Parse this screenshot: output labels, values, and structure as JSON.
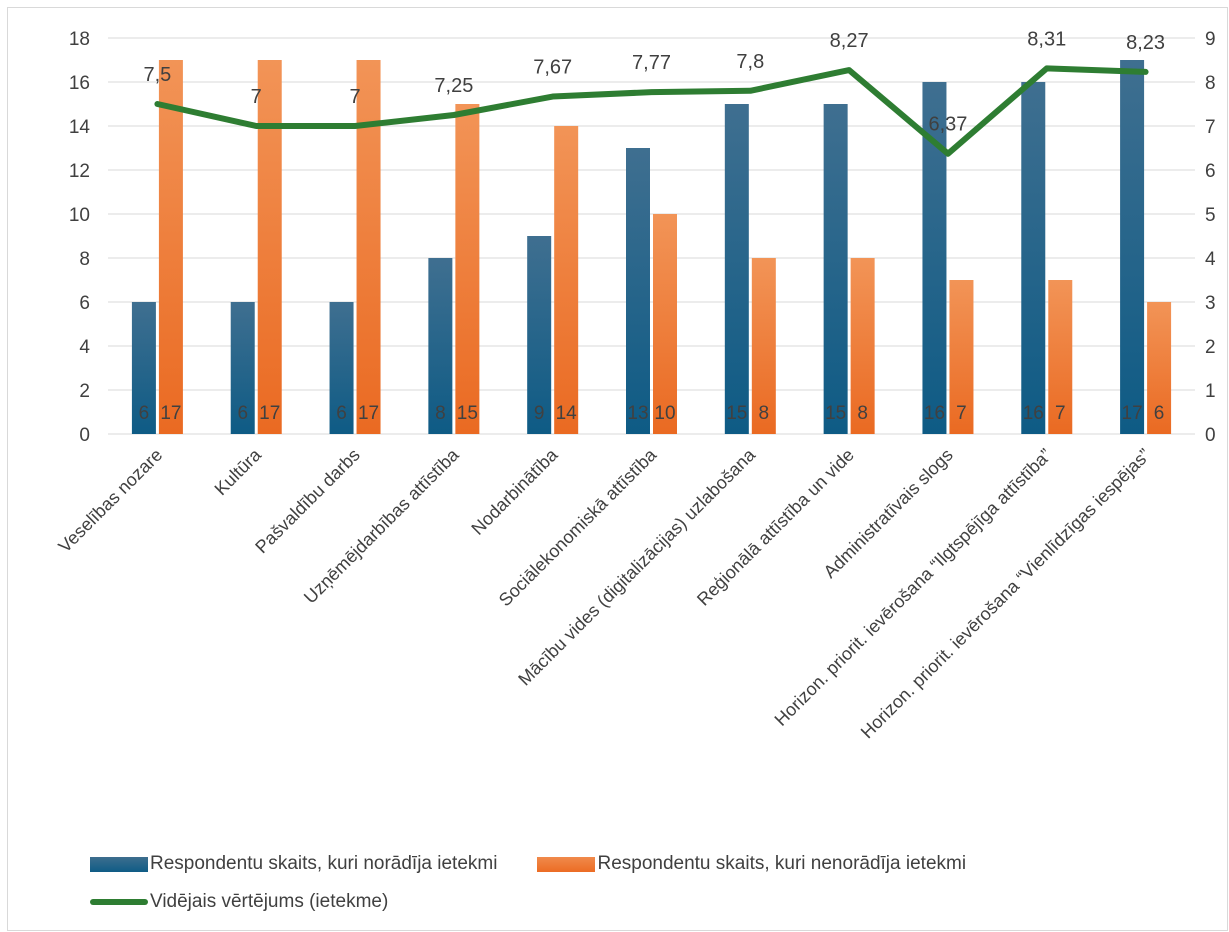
{
  "chart_data": {
    "type": "bar",
    "categories": [
      "Veselības nozare",
      "Kultūra",
      "Pašvaldību darbs",
      "Uzņēmējdarbības attīstība",
      "Nodarbinātība",
      "Sociālekonomiskā attīstība",
      "Mācību vides (digitalizācijas) uzlabošana",
      "Reģionālā attīstība un vide",
      "Administratīvais slogs",
      "Horizon. priorit. ievērošana “Ilgtspējīga attīstība”",
      "Horizon. priorit. ievērošana “Vienlīdzīgas iespējas”"
    ],
    "series": [
      {
        "name": "Respondentu skaits, kuri norādīja ietekmi",
        "kind": "bar",
        "axis": "left",
        "color": "#1f6389",
        "values": [
          6,
          6,
          6,
          8,
          9,
          13,
          15,
          15,
          16,
          16,
          17
        ],
        "labels": [
          "6",
          "6",
          "6",
          "8",
          "9",
          "13",
          "15",
          "15",
          "16",
          "16",
          "17"
        ]
      },
      {
        "name": "Respondentu skaits, kuri nenorādīja ietekmi",
        "kind": "bar",
        "axis": "left",
        "color": "#ee7a3a",
        "values": [
          17,
          17,
          17,
          15,
          14,
          10,
          8,
          8,
          7,
          7,
          6
        ],
        "labels": [
          "17",
          "17",
          "17",
          "15",
          "14",
          "10",
          "8",
          "8",
          "7",
          "7",
          "6"
        ]
      },
      {
        "name": "Vidējais vērtējums (ietekme)",
        "kind": "line",
        "axis": "right",
        "color": "#2e7d32",
        "values": [
          7.5,
          7,
          7,
          7.25,
          7.67,
          7.77,
          7.8,
          8.27,
          6.37,
          8.31,
          8.23
        ],
        "labels": [
          "7,5",
          "7",
          "7",
          "7,25",
          "7,67",
          "7,77",
          "7,8",
          "8,27",
          "6,37",
          "8,31",
          "8,23"
        ]
      }
    ],
    "ylim": [
      0,
      18
    ],
    "yticks": [
      "0",
      "2",
      "4",
      "6",
      "8",
      "10",
      "12",
      "14",
      "16",
      "18"
    ],
    "y2lim": [
      0,
      9
    ],
    "y2ticks": [
      "0",
      "1",
      "2",
      "3",
      "4",
      "5",
      "6",
      "7",
      "8",
      "9"
    ],
    "grid": true,
    "legend": "bottom"
  }
}
